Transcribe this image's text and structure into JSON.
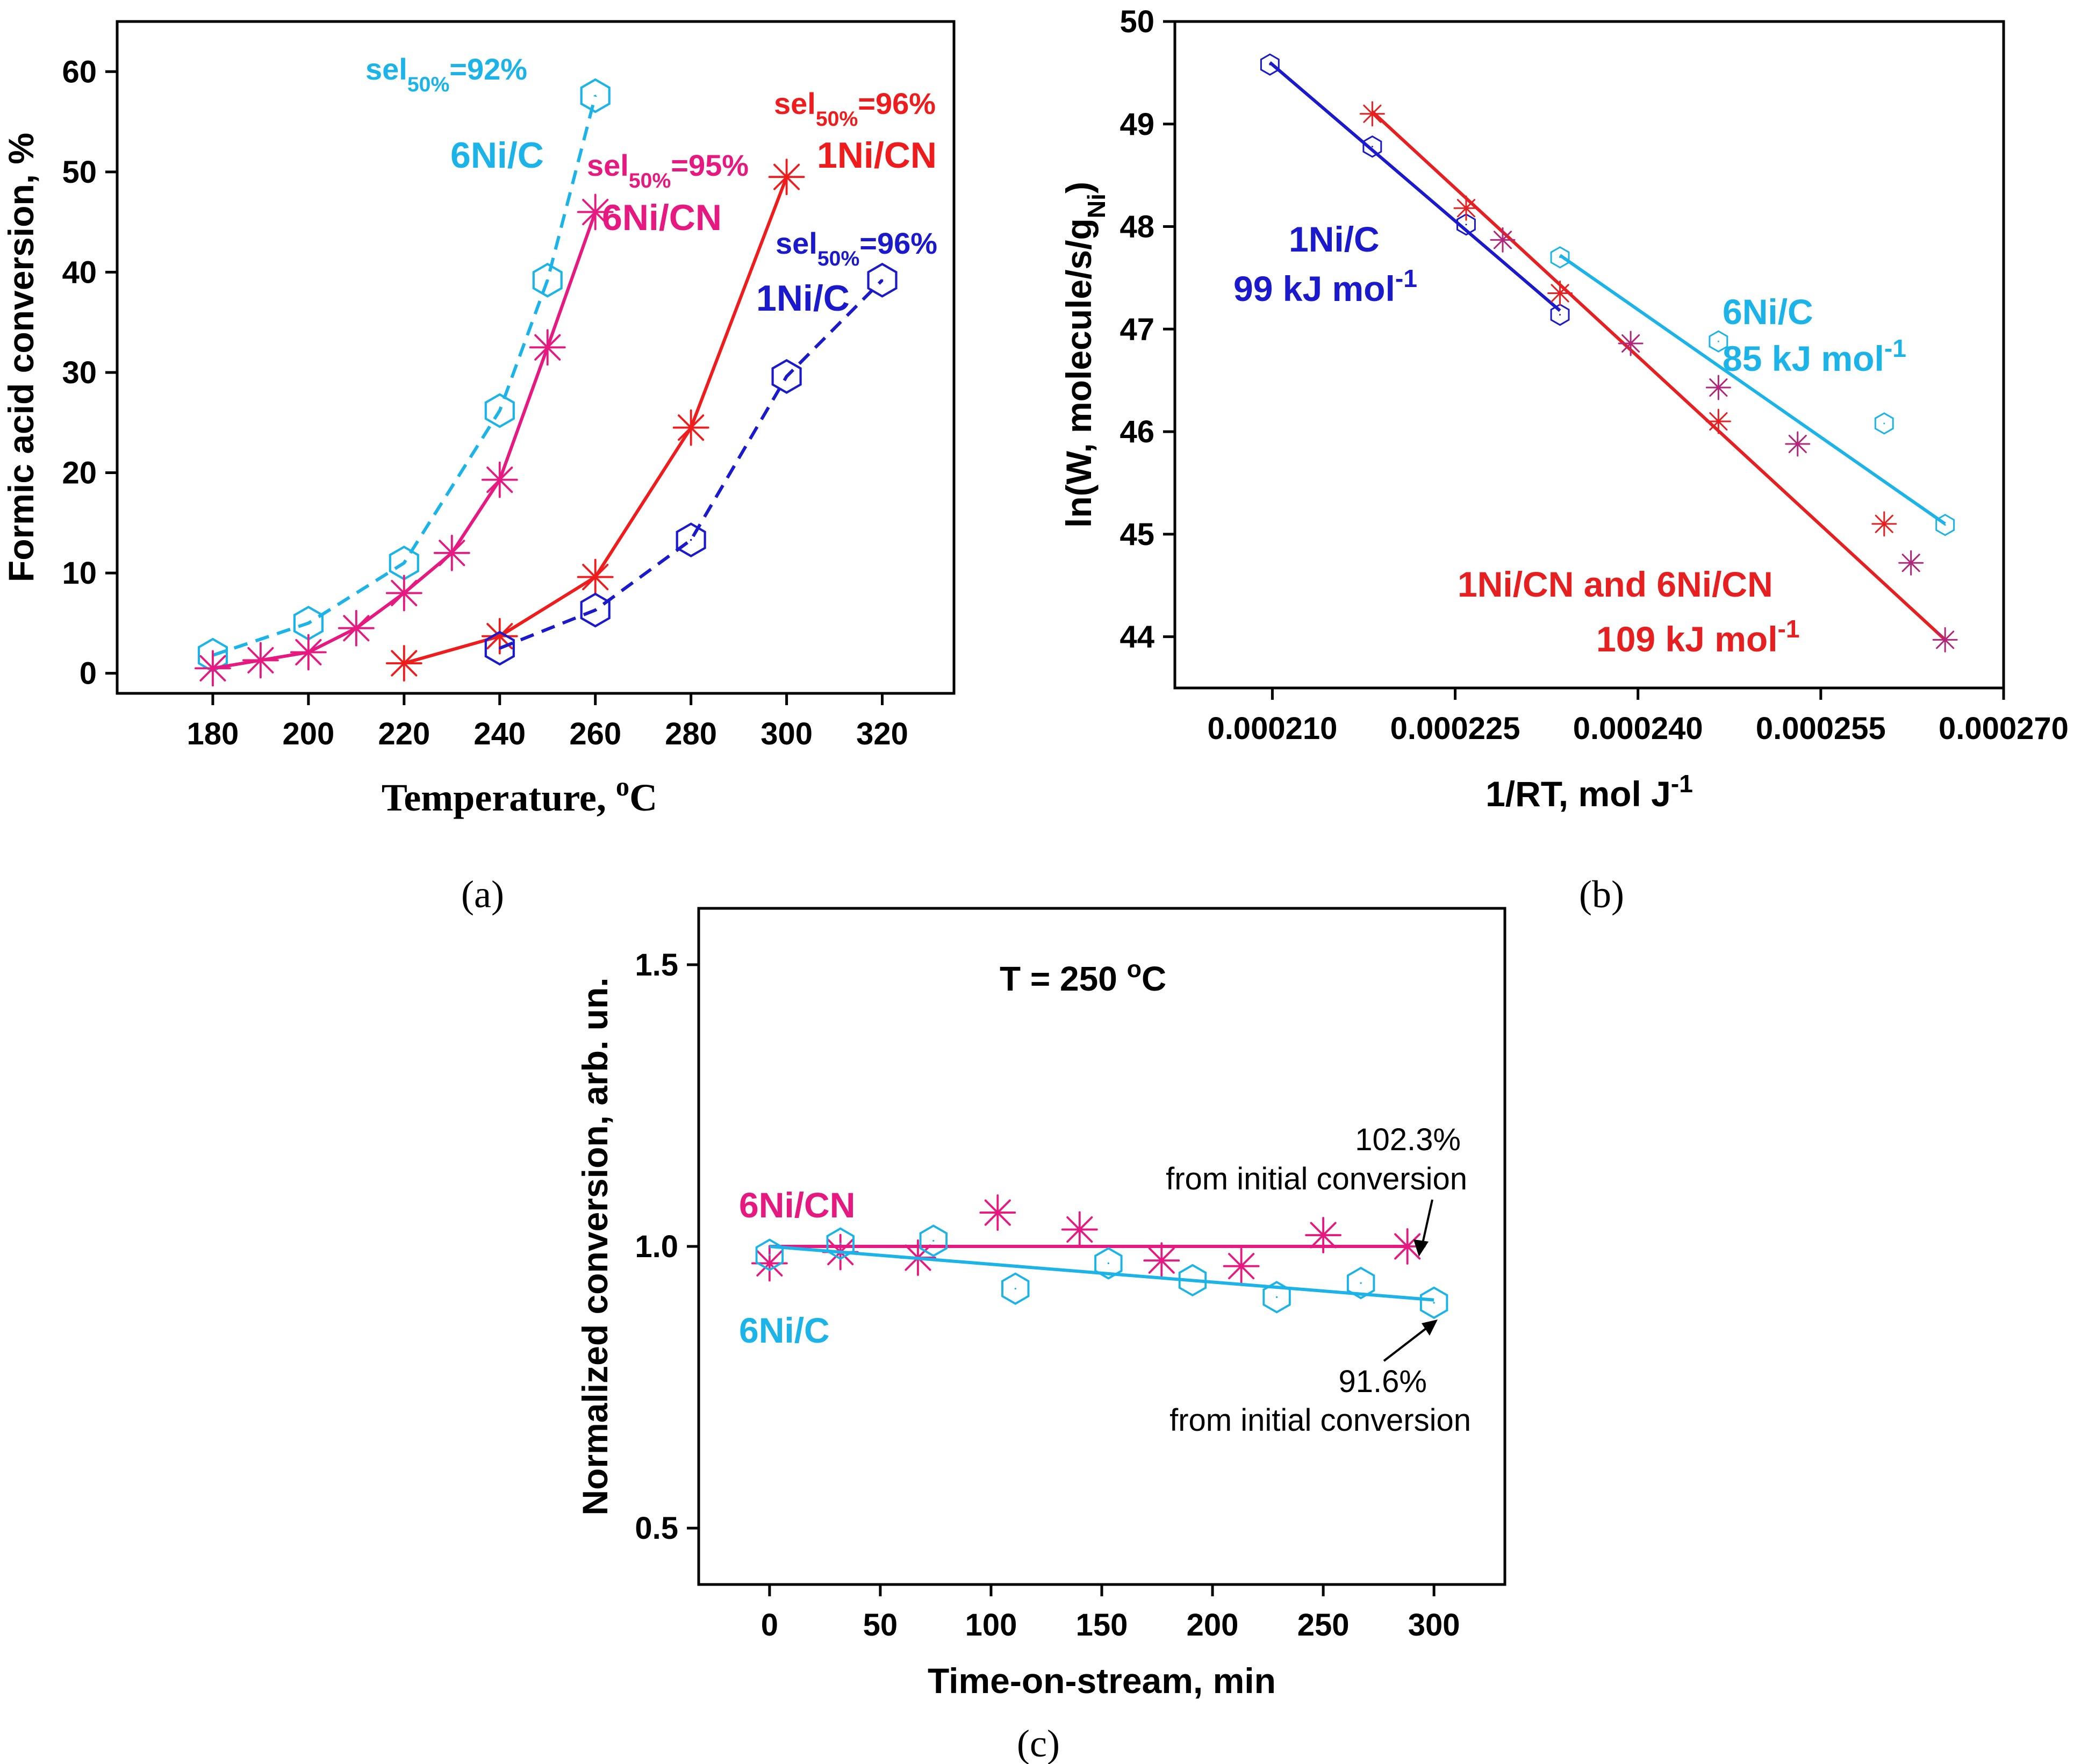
{
  "colors": {
    "red": "#ee1c1c",
    "pink": "#e5197f",
    "cyan": "#1cb4e8",
    "blue": "#1a1acc",
    "red_b": "#e62020",
    "pink_b": "#b0267a"
  },
  "chart_data": [
    {
      "panel": "(a)",
      "type": "line",
      "title": "",
      "xlabel": "Temperature, °C",
      "ylabel": "Formic acid conversion, %",
      "xlim": [
        160,
        335
      ],
      "ylim": [
        -2,
        65
      ],
      "xticks": [
        180,
        200,
        220,
        240,
        260,
        280,
        300,
        320
      ],
      "yticks": [
        0,
        10,
        20,
        30,
        40,
        50,
        60
      ],
      "series": [
        {
          "name": "6Ni/C",
          "color": "cyan",
          "marker": "hexagon",
          "dash": true,
          "x": [
            180,
            200,
            220,
            240,
            250,
            260
          ],
          "y": [
            1.8,
            5.0,
            11.0,
            26.2,
            39.2,
            57.6
          ]
        },
        {
          "name": "6Ni/CN",
          "color": "pink",
          "marker": "asterisk",
          "dash": false,
          "x": [
            180,
            190,
            200,
            210,
            220,
            230,
            240,
            250,
            260
          ],
          "y": [
            0.5,
            1.3,
            2.1,
            4.5,
            8.0,
            12.0,
            19.3,
            32.5,
            46.0
          ]
        },
        {
          "name": "1Ni/CN",
          "color": "red",
          "marker": "asterisk",
          "dash": false,
          "x": [
            220,
            240,
            260,
            280,
            300
          ],
          "y": [
            1.0,
            3.7,
            9.6,
            24.5,
            49.5
          ]
        },
        {
          "name": "1Ni/C",
          "color": "blue",
          "marker": "hexagon",
          "dash": true,
          "x": [
            240,
            260,
            280,
            300,
            320
          ],
          "y": [
            2.5,
            6.3,
            13.3,
            29.6,
            39.2
          ]
        }
      ],
      "annotations": [
        {
          "sel": "sel",
          "sub": "50%",
          "value": "=92%",
          "label": "6Ni/C",
          "color": "cyan"
        },
        {
          "sel": "sel",
          "sub": "50%",
          "value": "=95%",
          "label": "6Ni/CN",
          "color": "pink"
        },
        {
          "sel": "sel",
          "sub": "50%",
          "value": "=96%",
          "label": "1Ni/CN",
          "color": "red"
        },
        {
          "sel": "sel",
          "sub": "50%",
          "value": "=96%",
          "label": "1Ni/C",
          "color": "blue"
        }
      ]
    },
    {
      "panel": "(b)",
      "type": "scatter",
      "title": "",
      "xlabel_main": "1/RT, mol J",
      "xlabel_sup": "-1",
      "ylabel_main": "ln(W, molecule/s/g",
      "ylabel_sub": "Ni",
      "ylabel_end": ")",
      "xlim": [
        0.000202,
        0.00027
      ],
      "ylim": [
        43.5,
        50.0
      ],
      "xticks": [
        0.00021,
        0.000225,
        0.00024,
        0.000255,
        0.00027
      ],
      "xtick_labels": [
        "0.000210",
        "0.000225",
        "0.000240",
        "0.000255",
        "0.000270"
      ],
      "yticks": [
        44,
        45,
        46,
        47,
        48,
        49,
        50
      ],
      "series": [
        {
          "name": "1Ni/C",
          "color": "blue",
          "marker": "hexagon",
          "x": [
            0.0002098,
            0.0002182,
            0.0002259,
            0.0002336
          ],
          "y": [
            49.58,
            48.78,
            48.02,
            47.14
          ],
          "fit": {
            "x": [
              0.0002098,
              0.0002336
            ],
            "y": [
              49.6,
              47.18
            ]
          }
        },
        {
          "name": "6Ni/C",
          "color": "cyan",
          "marker": "hexagon",
          "x": [
            0.0002336,
            0.0002466,
            0.0002602,
            0.0002652
          ],
          "y": [
            47.7,
            46.88,
            46.08,
            45.09
          ],
          "fit": {
            "x": [
              0.0002336,
              0.0002652
            ],
            "y": [
              47.72,
              45.1
            ]
          }
        },
        {
          "name": "1Ni/CN and 6Ni/CN",
          "color": "red_b",
          "marker": "asterisk",
          "x": [
            0.0002182,
            0.0002259,
            0.0002336,
            0.0002466,
            0.0002602
          ],
          "y": [
            49.1,
            48.18,
            47.35,
            46.1,
            45.1
          ],
          "fit": {
            "x": [
              0.0002182,
              0.0002652
            ],
            "y": [
              49.12,
              43.97
            ]
          }
        },
        {
          "name": "6Ni/CN",
          "color": "pink_b",
          "marker": "asterisk",
          "x": [
            0.0002289,
            0.0002394,
            0.0002466,
            0.0002531,
            0.0002624,
            0.0002652
          ],
          "y": [
            47.87,
            46.86,
            46.43,
            45.88,
            44.72,
            43.97
          ]
        }
      ],
      "annotations": [
        {
          "label": "1Ni/C",
          "energy": "99 kJ mol",
          "sup": "-1",
          "color": "blue"
        },
        {
          "label": "6Ni/C",
          "energy": "85 kJ mol",
          "sup": "-1",
          "color": "cyan"
        },
        {
          "label": "1Ni/CN and 6Ni/CN",
          "energy": "109 kJ mol",
          "sup": "-1",
          "color": "red_b"
        }
      ]
    },
    {
      "panel": "(c)",
      "type": "scatter",
      "title": "T = 250 °C",
      "xlabel": "Time-on-stream, min",
      "ylabel": "Normalized conversion, arb. un.",
      "xlim": [
        -32,
        332
      ],
      "ylim": [
        0.4,
        1.6
      ],
      "xticks": [
        0,
        50,
        100,
        150,
        200,
        250,
        300
      ],
      "yticks": [
        0.5,
        1.0,
        1.5
      ],
      "ytick_labels": [
        "0.5",
        "1.0",
        "1.5"
      ],
      "series": [
        {
          "name": "6Ni/CN",
          "color": "pink",
          "marker": "asterisk",
          "x": [
            0,
            32,
            67,
            103,
            140,
            177,
            213,
            250,
            288
          ],
          "y": [
            0.97,
            0.99,
            0.98,
            1.06,
            1.03,
            0.975,
            0.965,
            1.02,
            1.0
          ],
          "fit": {
            "x": [
              0,
              288
            ],
            "y": [
              1.0,
              1.0
            ]
          }
        },
        {
          "name": "6Ni/C",
          "color": "cyan",
          "marker": "hexagon",
          "x": [
            0,
            32,
            74,
            111,
            153,
            191,
            229,
            267,
            300
          ],
          "y": [
            0.985,
            1.005,
            1.01,
            0.925,
            0.97,
            0.94,
            0.91,
            0.935,
            0.9
          ],
          "fit": {
            "x": [
              0,
              300
            ],
            "y": [
              1.0,
              0.905
            ]
          }
        }
      ],
      "annotations": [
        {
          "line1": "102.3%",
          "line2": "from initial conversion"
        },
        {
          "line1": "91.6%",
          "line2": "from initial conversion"
        }
      ]
    }
  ]
}
